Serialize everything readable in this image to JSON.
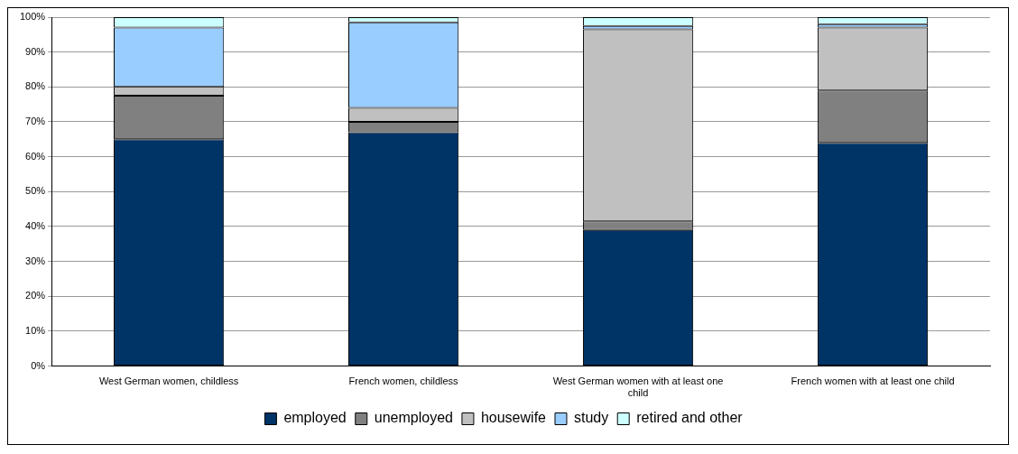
{
  "chart_data": {
    "type": "bar",
    "stacked": true,
    "categories": [
      "West German women, childless",
      "French women, childless",
      "West German women with at least one child",
      "French women with at least one child"
    ],
    "series": [
      {
        "name": "employed",
        "color": "#003366",
        "values": [
          65,
          67,
          39,
          64
        ]
      },
      {
        "name": "unemployed",
        "color": "#808080",
        "values": [
          12.5,
          3,
          2.5,
          15
        ]
      },
      {
        "name": "housewife",
        "color": "#c0c0c0",
        "values": [
          2.5,
          4,
          55,
          18
        ]
      },
      {
        "name": "study",
        "color": "#99ccff",
        "values": [
          17,
          24.5,
          1,
          1
        ]
      },
      {
        "name": "retired and other",
        "color": "#ccffff",
        "values": [
          3,
          1.5,
          2.5,
          2
        ]
      }
    ],
    "ylim": [
      0,
      100
    ],
    "yticks": [
      {
        "value": 0,
        "label": "0%"
      },
      {
        "value": 10,
        "label": "10%"
      },
      {
        "value": 20,
        "label": "20%"
      },
      {
        "value": 30,
        "label": "30%"
      },
      {
        "value": 40,
        "label": "40%"
      },
      {
        "value": 50,
        "label": "50%"
      },
      {
        "value": 60,
        "label": "60%"
      },
      {
        "value": 70,
        "label": "70%"
      },
      {
        "value": 80,
        "label": "80%"
      },
      {
        "value": 90,
        "label": "90%"
      },
      {
        "value": 100,
        "label": "100%"
      }
    ],
    "grid": "y",
    "legend": "bottom"
  }
}
